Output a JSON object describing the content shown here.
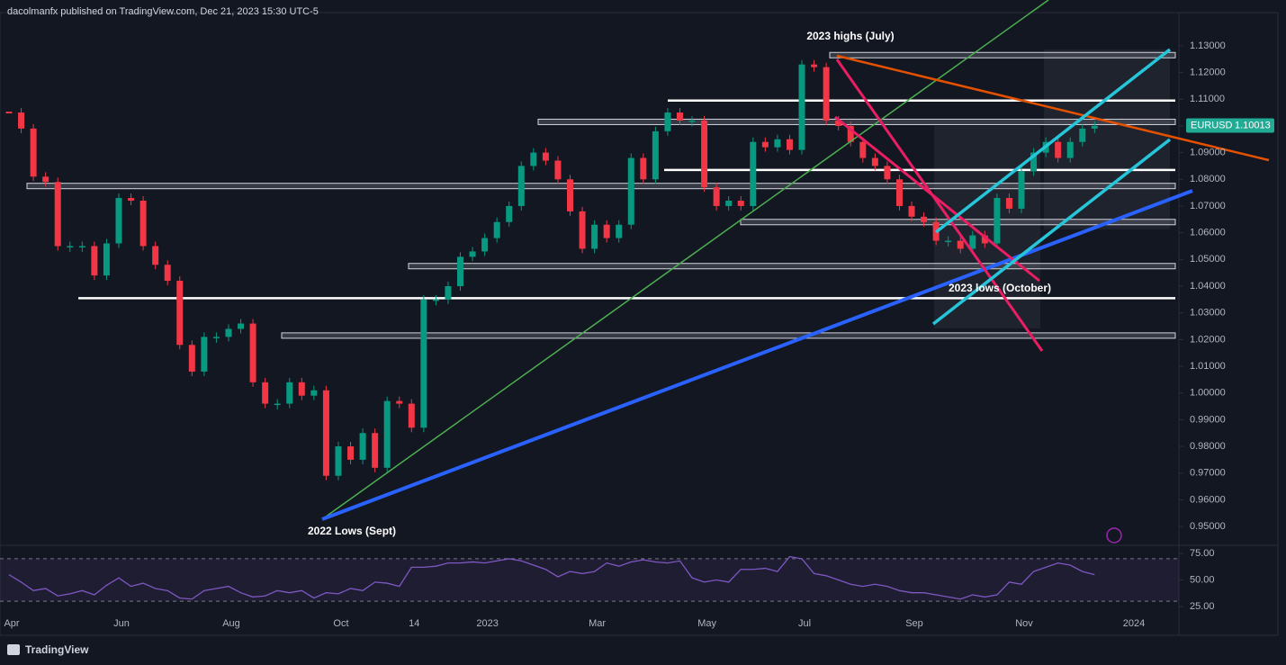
{
  "chart_data": [
    {
      "type": "candlestick",
      "source_note": "dacolmanfx published on TradingView.com, Dec 21, 2023 15:30 UTC-5",
      "brand": "TradingView",
      "categories": [
        "Apr",
        null,
        null,
        null,
        null,
        null,
        null,
        null,
        null,
        "Jun",
        null,
        null,
        null,
        null,
        null,
        null,
        null,
        null,
        "Aug",
        null,
        null,
        null,
        null,
        null,
        null,
        null,
        null,
        "Oct",
        null,
        null,
        null,
        null,
        null,
        "14",
        null,
        null,
        null,
        null,
        null,
        "2023",
        null,
        null,
        null,
        null,
        null,
        null,
        null,
        null,
        "Mar",
        null,
        null,
        null,
        null,
        null,
        null,
        null,
        null,
        "May",
        null,
        null,
        null,
        null,
        null,
        null,
        null,
        "Jul",
        null,
        null,
        null,
        null,
        null,
        null,
        null,
        null,
        "Sep",
        null,
        null,
        null,
        null,
        null,
        null,
        null,
        null,
        "Nov",
        null,
        null,
        null,
        null,
        null,
        null,
        null,
        null,
        "2024"
      ],
      "series": [
        {
          "name": "EURUSD",
          "up_color": "#089981",
          "down_color": "#f23645",
          "values": [
            1.105,
            1.099,
            1.081,
            1.079,
            1.055,
            1.055,
            1.055,
            1.044,
            1.056,
            1.073,
            1.072,
            1.055,
            1.048,
            1.042,
            1.018,
            1.008,
            1.021,
            1.021,
            1.024,
            1.026,
            1.004,
            0.996,
            0.996,
            1.004,
            0.999,
            1.001,
            0.969,
            0.98,
            0.975,
            0.985,
            0.972,
            0.997,
            0.996,
            0.987,
            1.035,
            1.035,
            1.04,
            1.051,
            1.053,
            1.058,
            1.064,
            1.07,
            1.085,
            1.09,
            1.087,
            1.08,
            1.068,
            1.054,
            1.063,
            1.058,
            1.063,
            1.088,
            1.08,
            1.098,
            1.105,
            1.102,
            1.102,
            1.077,
            1.07,
            1.072,
            1.07,
            1.094,
            1.092,
            1.095,
            1.091,
            1.123,
            1.122,
            1.102,
            1.1,
            1.094,
            1.088,
            1.085,
            1.08,
            1.07,
            1.066,
            1.064,
            1.057,
            1.057,
            1.054,
            1.059,
            1.056,
            1.073,
            1.069,
            1.083,
            1.09,
            1.094,
            1.088,
            1.094,
            1.099,
            1.1,
            null,
            null,
            null
          ]
        }
      ],
      "last_price": 1.10013,
      "levels": [
        1.1265,
        1.1095,
        1.1015,
        1.0835,
        1.0775,
        1.064,
        1.0475,
        1.0355,
        1.0215
      ],
      "annotations": [
        "2023 highs (July)",
        "2023 lows (October)",
        "2022 Lows (Sept)"
      ],
      "ylim": [
        0.9433,
        1.1404
      ],
      "yticks": [
        {
          "value": 0.95,
          "label": "0.95000"
        },
        {
          "value": 0.96,
          "label": "0.96000"
        },
        {
          "value": 0.97,
          "label": "0.97000"
        },
        {
          "value": 0.98,
          "label": "0.98000"
        },
        {
          "value": 0.99,
          "label": "0.99000"
        },
        {
          "value": 1.0,
          "label": "1.00000"
        },
        {
          "value": 1.01,
          "label": "1.01000"
        },
        {
          "value": 1.02,
          "label": "1.02000"
        },
        {
          "value": 1.03,
          "label": "1.03000"
        },
        {
          "value": 1.04,
          "label": "1.04000"
        },
        {
          "value": 1.05,
          "label": "1.05000"
        },
        {
          "value": 1.06,
          "label": "1.06000"
        },
        {
          "value": 1.07,
          "label": "1.07000"
        },
        {
          "value": 1.08,
          "label": "1.08000"
        },
        {
          "value": 1.09,
          "label": "1.09000"
        },
        {
          "value": 1.1,
          "label": "1.10000"
        },
        {
          "value": 1.11,
          "label": "1.11000"
        },
        {
          "value": 1.12,
          "label": "1.12000"
        },
        {
          "value": 1.13,
          "label": "1.13000"
        }
      ]
    },
    {
      "type": "line",
      "color": "#7e57c2",
      "values": [
        55,
        48,
        40,
        42,
        35,
        37,
        40,
        36,
        45,
        52,
        44,
        47,
        42,
        40,
        33,
        32,
        40,
        42,
        44,
        38,
        34,
        35,
        40,
        38,
        40,
        33,
        38,
        37,
        42,
        40,
        48,
        47,
        44,
        62,
        62,
        63,
        66,
        66,
        67,
        66,
        68,
        70,
        68,
        64,
        60,
        53,
        58,
        56,
        58,
        66,
        63,
        67,
        69,
        67,
        66,
        68,
        52,
        48,
        50,
        48,
        60,
        60,
        61,
        58,
        72,
        70,
        56,
        54,
        50,
        46,
        44,
        46,
        44,
        40,
        38,
        38,
        36,
        34,
        32,
        36,
        34,
        36,
        48,
        46,
        58,
        62,
        66,
        64,
        58,
        55,
        null,
        null,
        null
      ],
      "bands": [
        30,
        70
      ],
      "ylim": [
        15.7,
        81.8
      ],
      "yticks": [
        {
          "value": 75,
          "label": "75.00"
        },
        {
          "value": 50,
          "label": "50.00"
        },
        {
          "value": 25,
          "label": "25.00"
        }
      ]
    }
  ]
}
